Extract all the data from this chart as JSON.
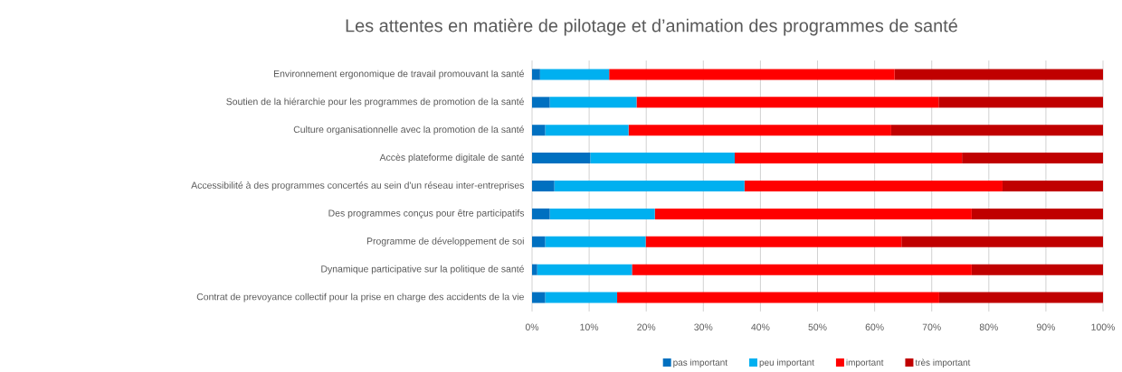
{
  "chart_data": {
    "type": "bar",
    "orientation": "horizontal",
    "stacked": true,
    "title": "Les attentes en matière de pilotage et d’animation des programmes de santé",
    "categories": [
      "Environnement ergonomique de travail promouvant la santé",
      "Soutien de la hiérarchie pour les programmes de promotion de la santé",
      "Culture organisationnelle avec la promotion de la santé",
      "Accès plateforme digitale de santé",
      "Accessibilité à des programmes concertés au sein d'un réseau inter-entreprises",
      "Des programmes conçus pour être participatifs",
      "Programme de développement de soi",
      "Dynamique participative sur la politique de santé",
      "Contrat de prevoyance collectif pour la prise en charge des accidents de la vie"
    ],
    "series": [
      {
        "name": "pas important",
        "color": "#0070c0",
        "values": [
          1.4,
          3.1,
          2.3,
          10.2,
          3.9,
          3.1,
          2.3,
          0.9,
          2.3
        ]
      },
      {
        "name": "peu important",
        "color": "#00b0f0",
        "values": [
          12.1,
          15.2,
          14.6,
          25.3,
          33.3,
          18.4,
          17.6,
          16.6,
          12.6
        ]
      },
      {
        "name": "important",
        "color": "#ff0000",
        "values": [
          50.0,
          52.9,
          46.0,
          39.8,
          45.2,
          55.5,
          44.8,
          59.5,
          56.4
        ]
      },
      {
        "name": "très important",
        "color": "#c00000",
        "values": [
          36.5,
          28.8,
          37.1,
          24.7,
          17.6,
          23.0,
          35.3,
          23.0,
          28.7
        ]
      }
    ],
    "xlim": [
      0,
      100
    ],
    "xticks": [
      {
        "value": 0,
        "label": "0%"
      },
      {
        "value": 10,
        "label": "10%"
      },
      {
        "value": 20,
        "label": "20%"
      },
      {
        "value": 30,
        "label": "30%"
      },
      {
        "value": 40,
        "label": "40%"
      },
      {
        "value": 50,
        "label": "50%"
      },
      {
        "value": 60,
        "label": "60%"
      },
      {
        "value": 70,
        "label": "70%"
      },
      {
        "value": 80,
        "label": "80%"
      },
      {
        "value": 90,
        "label": "90%"
      },
      {
        "value": 100,
        "label": "100%"
      }
    ],
    "grid": "x",
    "legend": "bottom"
  }
}
